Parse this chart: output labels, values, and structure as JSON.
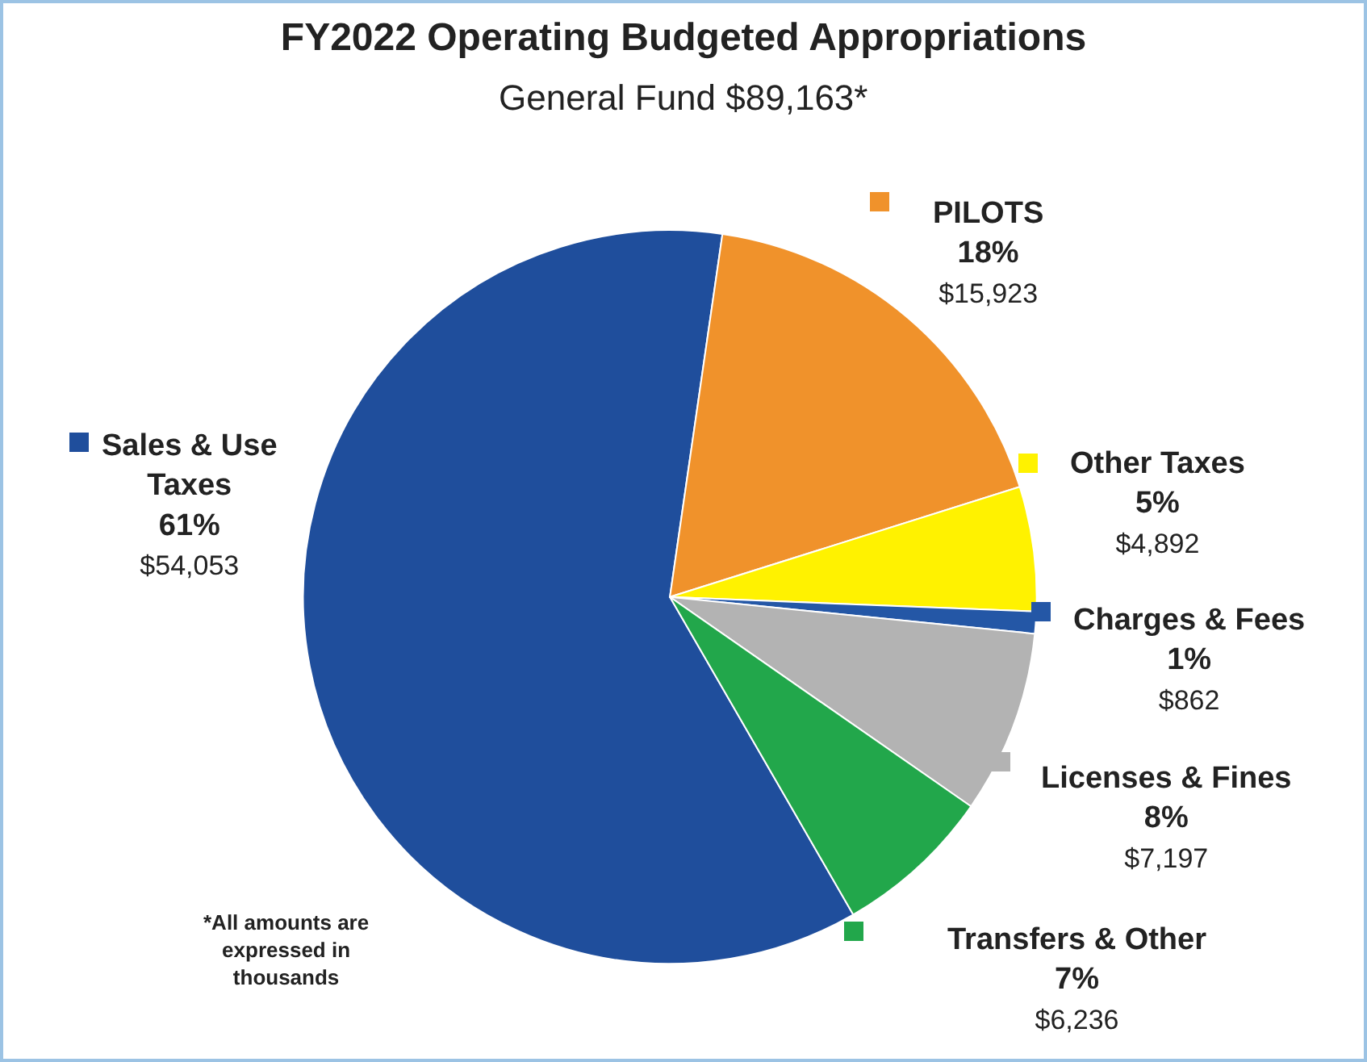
{
  "chart_data": {
    "type": "pie",
    "title": "FY2022 Operating Budgeted Appropriations",
    "subtitle": "General Fund $89,163*",
    "categories": [
      "Sales & Use Taxes",
      "PILOTS",
      "Other Taxes",
      "Charges & Fees",
      "Licenses & Fines",
      "Transfers & Other"
    ],
    "values": [
      54053,
      15923,
      4892,
      862,
      7197,
      6236
    ],
    "colors": [
      "#1f4e9c",
      "#f0922b",
      "#fff200",
      "#2457a6",
      "#b3b3b3",
      "#22a74b"
    ],
    "value_labels": [
      "61%\n$54,053",
      "18%\n$15,923",
      "5%\n$4,892",
      "1%\n$862",
      "8%\n$7,197",
      "7%\n$6,236"
    ],
    "legend": "right",
    "annotations": [
      "*All amounts are expressed in thousands"
    ]
  }
}
